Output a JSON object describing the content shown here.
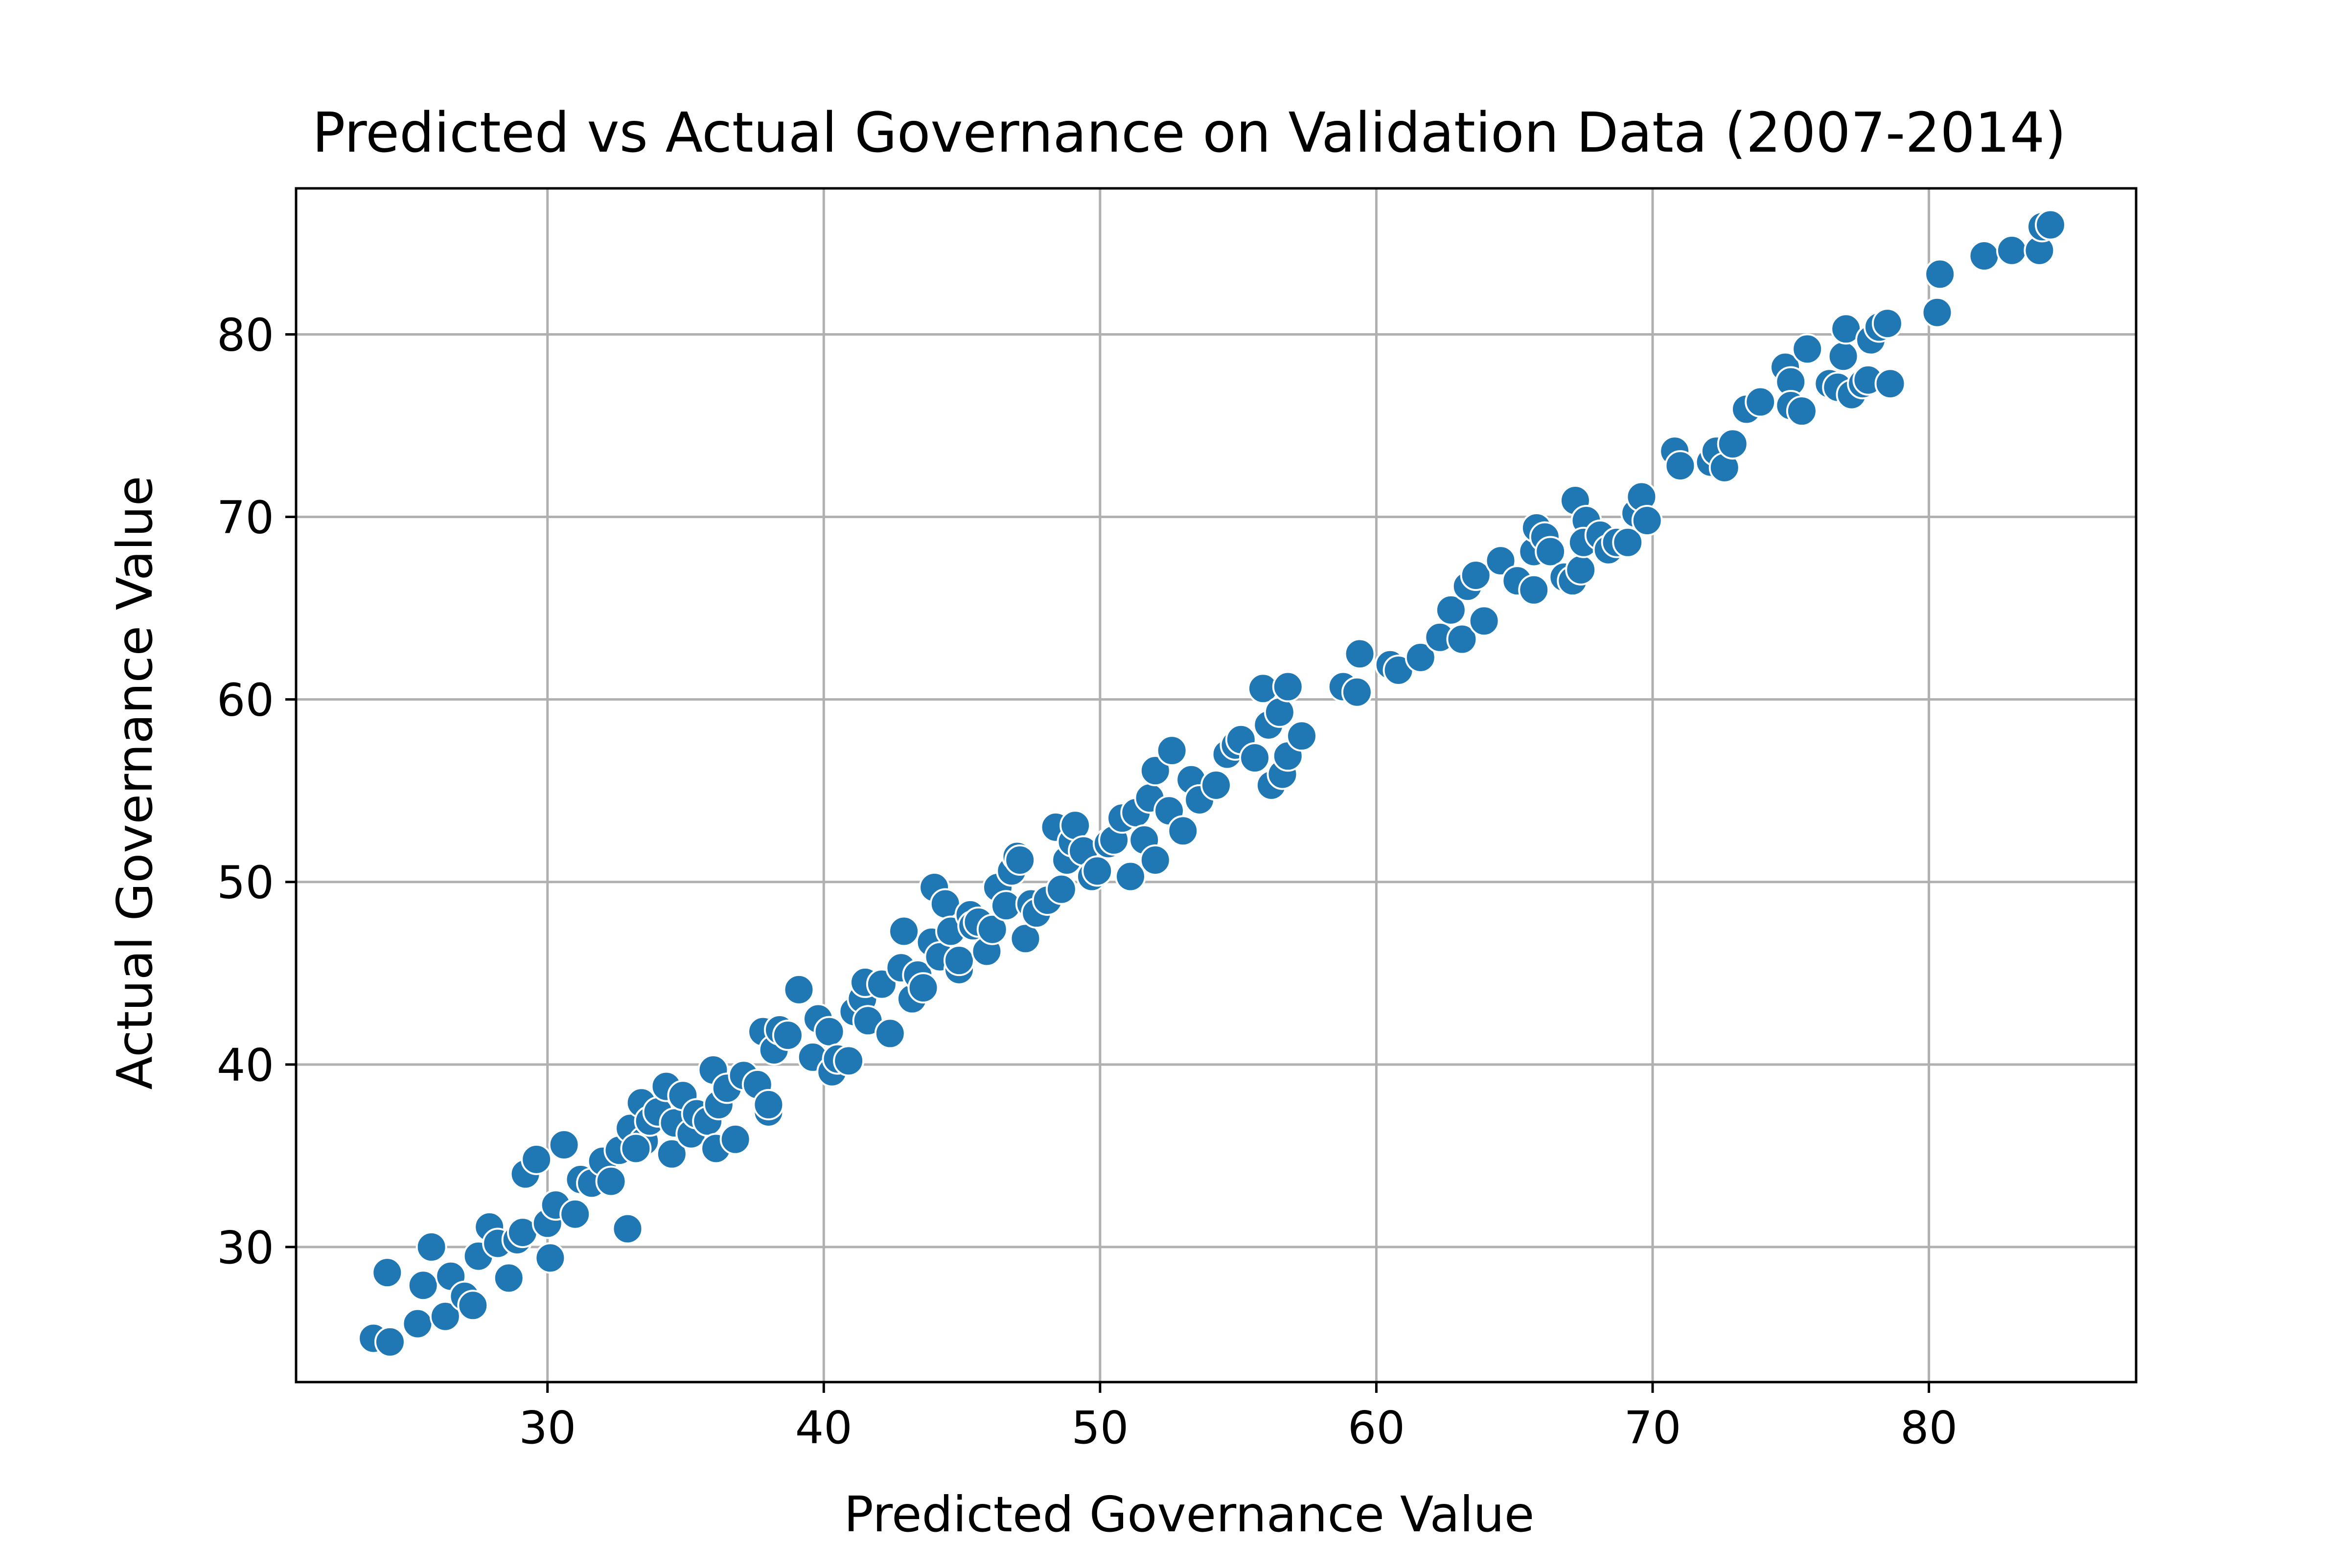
{
  "chart_data": {
    "type": "scatter",
    "title": "Predicted vs Actual Governance on Validation Data (2007-2014)",
    "xlabel": "Predicted Governance Value",
    "ylabel": "Actual Governance Value",
    "xlim": [
      20.9,
      87.5
    ],
    "ylim": [
      22.6,
      88.0
    ],
    "xticks": [
      30,
      40,
      50,
      60,
      70,
      80
    ],
    "yticks": [
      30,
      40,
      50,
      60,
      70,
      80
    ],
    "xtick_labels": [
      "30",
      "40",
      "50",
      "60",
      "70",
      "80"
    ],
    "ytick_labels": [
      "30",
      "40",
      "50",
      "60",
      "70",
      "80"
    ],
    "grid": true,
    "legend": "none",
    "marker_color": "#1f77b4",
    "marker_edge_color": "#ffffff",
    "grid_color": "#b0b0b0",
    "points": [
      [
        23.7,
        25.0
      ],
      [
        24.3,
        24.8
      ],
      [
        24.2,
        28.6
      ],
      [
        25.3,
        25.8
      ],
      [
        25.5,
        27.9
      ],
      [
        25.8,
        30.0
      ],
      [
        26.3,
        26.2
      ],
      [
        26.5,
        28.4
      ],
      [
        27.0,
        27.3
      ],
      [
        27.3,
        26.8
      ],
      [
        27.5,
        29.5
      ],
      [
        27.9,
        31.1
      ],
      [
        28.2,
        30.2
      ],
      [
        28.6,
        28.3
      ],
      [
        28.9,
        30.4
      ],
      [
        29.1,
        30.8
      ],
      [
        29.2,
        34.0
      ],
      [
        29.6,
        34.8
      ],
      [
        30.0,
        31.3
      ],
      [
        30.1,
        29.4
      ],
      [
        30.3,
        32.3
      ],
      [
        30.6,
        35.6
      ],
      [
        31.0,
        31.8
      ],
      [
        31.2,
        33.7
      ],
      [
        31.6,
        33.5
      ],
      [
        32.0,
        34.7
      ],
      [
        32.3,
        33.6
      ],
      [
        32.6,
        35.3
      ],
      [
        32.9,
        31.0
      ],
      [
        33.0,
        36.5
      ],
      [
        33.4,
        37.9
      ],
      [
        33.5,
        35.8
      ],
      [
        33.7,
        36.9
      ],
      [
        33.2,
        35.4
      ],
      [
        34.0,
        37.4
      ],
      [
        34.3,
        38.8
      ],
      [
        34.6,
        36.8
      ],
      [
        34.5,
        35.1
      ],
      [
        34.9,
        38.3
      ],
      [
        35.2,
        36.2
      ],
      [
        35.4,
        37.3
      ],
      [
        35.8,
        36.9
      ],
      [
        36.0,
        39.7
      ],
      [
        36.2,
        37.8
      ],
      [
        36.1,
        35.4
      ],
      [
        36.5,
        38.7
      ],
      [
        36.8,
        35.9
      ],
      [
        37.1,
        39.4
      ],
      [
        37.6,
        38.9
      ],
      [
        37.8,
        41.8
      ],
      [
        38.0,
        37.4
      ],
      [
        38.0,
        37.8
      ],
      [
        38.2,
        40.8
      ],
      [
        38.4,
        41.9
      ],
      [
        38.7,
        41.6
      ],
      [
        39.1,
        44.1
      ],
      [
        39.6,
        40.4
      ],
      [
        39.8,
        42.5
      ],
      [
        40.2,
        41.8
      ],
      [
        40.3,
        39.6
      ],
      [
        40.5,
        40.3
      ],
      [
        40.9,
        40.2
      ],
      [
        41.1,
        42.9
      ],
      [
        41.4,
        43.6
      ],
      [
        41.5,
        44.5
      ],
      [
        41.6,
        42.4
      ],
      [
        42.1,
        44.4
      ],
      [
        42.4,
        41.7
      ],
      [
        42.8,
        45.3
      ],
      [
        42.9,
        47.3
      ],
      [
        43.2,
        43.6
      ],
      [
        43.4,
        44.9
      ],
      [
        43.6,
        44.2
      ],
      [
        43.9,
        46.7
      ],
      [
        44.0,
        49.7
      ],
      [
        44.2,
        45.9
      ],
      [
        44.4,
        48.8
      ],
      [
        44.6,
        47.3
      ],
      [
        44.9,
        45.2
      ],
      [
        44.9,
        45.7
      ],
      [
        45.3,
        48.2
      ],
      [
        45.4,
        47.6
      ],
      [
        45.6,
        47.8
      ],
      [
        45.9,
        46.2
      ],
      [
        46.1,
        47.4
      ],
      [
        46.3,
        49.7
      ],
      [
        46.6,
        48.7
      ],
      [
        46.8,
        50.6
      ],
      [
        47.0,
        51.4
      ],
      [
        47.1,
        51.2
      ],
      [
        47.3,
        46.9
      ],
      [
        47.5,
        48.8
      ],
      [
        47.7,
        48.3
      ],
      [
        48.1,
        49.0
      ],
      [
        48.4,
        53.0
      ],
      [
        48.6,
        49.6
      ],
      [
        48.8,
        51.2
      ],
      [
        49.0,
        52.2
      ],
      [
        49.1,
        53.1
      ],
      [
        49.4,
        51.7
      ],
      [
        49.7,
        50.3
      ],
      [
        49.9,
        50.6
      ],
      [
        50.3,
        52.1
      ],
      [
        50.5,
        52.3
      ],
      [
        50.8,
        53.5
      ],
      [
        51.1,
        50.3
      ],
      [
        51.3,
        53.8
      ],
      [
        51.6,
        52.3
      ],
      [
        51.8,
        54.6
      ],
      [
        52.0,
        51.2
      ],
      [
        52.0,
        56.1
      ],
      [
        52.5,
        53.9
      ],
      [
        52.6,
        57.2
      ],
      [
        53.0,
        52.8
      ],
      [
        53.3,
        55.6
      ],
      [
        53.6,
        54.5
      ],
      [
        54.2,
        55.3
      ],
      [
        54.6,
        57.0
      ],
      [
        54.9,
        57.5
      ],
      [
        55.1,
        57.8
      ],
      [
        55.6,
        56.8
      ],
      [
        55.9,
        60.6
      ],
      [
        56.1,
        58.6
      ],
      [
        56.2,
        55.3
      ],
      [
        56.5,
        59.3
      ],
      [
        56.6,
        55.9
      ],
      [
        56.8,
        60.7
      ],
      [
        56.8,
        56.9
      ],
      [
        57.3,
        58.0
      ],
      [
        58.8,
        60.7
      ],
      [
        59.3,
        60.4
      ],
      [
        59.4,
        62.5
      ],
      [
        60.5,
        61.9
      ],
      [
        60.8,
        61.6
      ],
      [
        61.6,
        62.3
      ],
      [
        62.3,
        63.4
      ],
      [
        62.7,
        64.9
      ],
      [
        63.1,
        63.3
      ],
      [
        63.3,
        66.2
      ],
      [
        63.6,
        66.8
      ],
      [
        63.9,
        64.3
      ],
      [
        64.5,
        67.6
      ],
      [
        65.1,
        66.5
      ],
      [
        65.7,
        68.1
      ],
      [
        65.7,
        66.0
      ],
      [
        65.8,
        69.4
      ],
      [
        66.1,
        68.9
      ],
      [
        66.3,
        68.1
      ],
      [
        66.8,
        66.7
      ],
      [
        67.1,
        66.5
      ],
      [
        67.2,
        70.9
      ],
      [
        67.4,
        67.1
      ],
      [
        67.6,
        69.8
      ],
      [
        67.5,
        68.6
      ],
      [
        68.1,
        69.0
      ],
      [
        68.4,
        68.2
      ],
      [
        68.7,
        68.6
      ],
      [
        69.1,
        68.6
      ],
      [
        69.4,
        70.2
      ],
      [
        69.6,
        71.1
      ],
      [
        69.8,
        69.8
      ],
      [
        70.8,
        73.6
      ],
      [
        71.0,
        72.8
      ],
      [
        72.1,
        73.0
      ],
      [
        72.3,
        73.6
      ],
      [
        72.6,
        72.7
      ],
      [
        72.9,
        74.0
      ],
      [
        73.4,
        75.9
      ],
      [
        73.9,
        76.3
      ],
      [
        74.8,
        78.2
      ],
      [
        75.0,
        77.4
      ],
      [
        75.0,
        76.1
      ],
      [
        75.4,
        75.8
      ],
      [
        75.6,
        79.2
      ],
      [
        76.4,
        77.3
      ],
      [
        76.7,
        77.1
      ],
      [
        76.9,
        78.8
      ],
      [
        77.0,
        80.3
      ],
      [
        77.2,
        76.7
      ],
      [
        77.6,
        77.3
      ],
      [
        77.8,
        77.5
      ],
      [
        77.9,
        79.7
      ],
      [
        78.2,
        80.4
      ],
      [
        78.5,
        80.6
      ],
      [
        78.6,
        77.3
      ],
      [
        80.3,
        81.2
      ],
      [
        80.4,
        83.3
      ],
      [
        82.0,
        84.3
      ],
      [
        83.0,
        84.6
      ],
      [
        84.0,
        84.6
      ],
      [
        84.1,
        85.9
      ],
      [
        84.4,
        86.0
      ]
    ]
  }
}
